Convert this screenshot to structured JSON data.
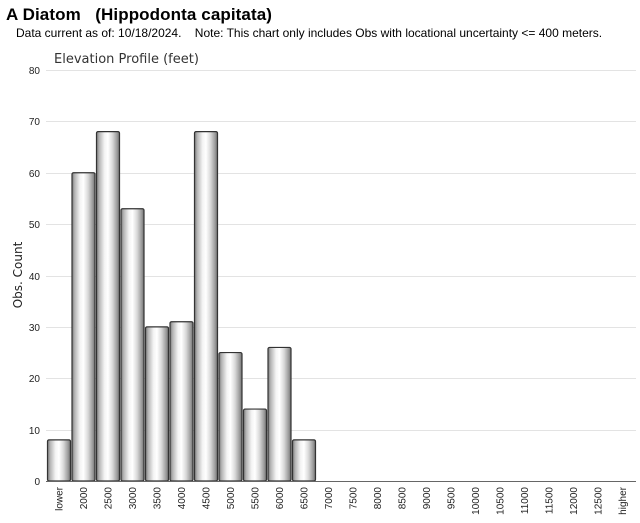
{
  "header": {
    "title": "A Diatom   (Hippodonta capitata)",
    "subtitle": "Data current as of: 10/18/2024.    Note: This chart only includes Obs with locational uncertainty <= 400 meters."
  },
  "chart_data": {
    "type": "bar",
    "title": "Elevation Profile (feet)",
    "xlabel": "",
    "ylabel": "Obs. Count",
    "ylim": [
      0,
      80
    ],
    "yticks": [
      0,
      10,
      20,
      30,
      40,
      50,
      60,
      70,
      80
    ],
    "grid": true,
    "categories": [
      "lower",
      "2000",
      "2500",
      "3000",
      "3500",
      "4000",
      "4500",
      "5000",
      "5500",
      "6000",
      "6500",
      "7000",
      "7500",
      "8000",
      "8500",
      "9000",
      "9500",
      "10000",
      "10500",
      "11000",
      "11500",
      "12000",
      "12500",
      "higher"
    ],
    "values": [
      8,
      60,
      68,
      53,
      30,
      31,
      68,
      25,
      14,
      26,
      8,
      0,
      0,
      0,
      0,
      0,
      0,
      0,
      0,
      0,
      0,
      0,
      0,
      0
    ]
  }
}
